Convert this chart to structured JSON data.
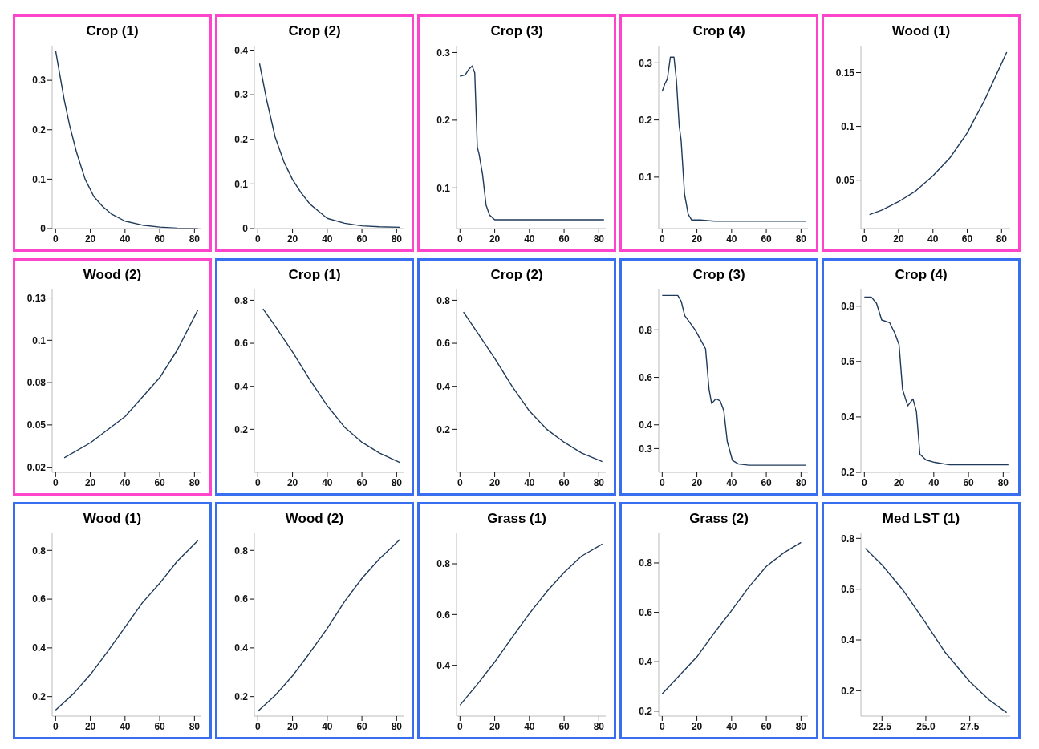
{
  "chart_data": [
    {
      "type": "line",
      "title": "Crop (1)",
      "xlim": [
        -2,
        84
      ],
      "xticks": [
        0,
        20,
        40,
        60,
        80
      ],
      "ylim": [
        0,
        0.37
      ],
      "yticks": [
        0,
        0.1,
        0.2,
        0.3
      ],
      "series": [
        {
          "color": "#1f3a5a",
          "x": [
            0,
            2,
            5,
            8,
            12,
            17,
            22,
            27,
            32,
            40,
            50,
            60,
            70,
            82
          ],
          "values": [
            0.36,
            0.32,
            0.26,
            0.21,
            0.155,
            0.1,
            0.065,
            0.045,
            0.03,
            0.015,
            0.007,
            0.003,
            0.001,
            0.0
          ]
        }
      ]
    },
    {
      "type": "line",
      "title": "Crop (2)",
      "xlim": [
        -2,
        84
      ],
      "xticks": [
        0,
        20,
        40,
        60,
        80
      ],
      "ylim": [
        0,
        0.41
      ],
      "yticks": [
        0,
        0.1,
        0.2,
        0.3,
        0.4
      ],
      "series": [
        {
          "color": "#1f3a5a",
          "x": [
            1,
            5,
            10,
            15,
            20,
            25,
            30,
            40,
            50,
            60,
            70,
            82
          ],
          "values": [
            0.37,
            0.29,
            0.205,
            0.15,
            0.11,
            0.08,
            0.055,
            0.023,
            0.012,
            0.006,
            0.004,
            0.003
          ]
        }
      ]
    },
    {
      "type": "line",
      "title": "Crop (3)",
      "xlim": [
        -2,
        84
      ],
      "xticks": [
        0,
        20,
        40,
        60,
        80
      ],
      "ylim": [
        0.04,
        0.31
      ],
      "yticks": [
        0.1,
        0.2,
        0.3
      ],
      "series": [
        {
          "color": "#1f3a5a",
          "x": [
            0,
            3,
            5,
            7,
            8.5,
            10,
            11,
            13,
            15,
            17,
            20,
            40,
            60,
            83
          ],
          "values": [
            0.265,
            0.267,
            0.275,
            0.28,
            0.27,
            0.16,
            0.15,
            0.12,
            0.075,
            0.06,
            0.053,
            0.053,
            0.053,
            0.053
          ]
        }
      ]
    },
    {
      "type": "line",
      "title": "Crop (4)",
      "xlim": [
        -2,
        84
      ],
      "xticks": [
        0,
        20,
        40,
        60,
        80
      ],
      "ylim": [
        0.01,
        0.33
      ],
      "yticks": [
        0.1,
        0.2,
        0.3
      ],
      "series": [
        {
          "color": "#1f3a5a",
          "x": [
            0,
            1.5,
            3,
            4.7,
            6.8,
            8.2,
            9.8,
            10.9,
            12.9,
            15,
            17,
            22,
            30,
            50,
            83
          ],
          "values": [
            0.25,
            0.263,
            0.272,
            0.31,
            0.31,
            0.27,
            0.19,
            0.165,
            0.07,
            0.035,
            0.025,
            0.025,
            0.023,
            0.023,
            0.023
          ]
        }
      ]
    },
    {
      "type": "line",
      "title": "Wood (1)",
      "xlim": [
        -2,
        85
      ],
      "xticks": [
        0,
        20,
        40,
        60,
        80
      ],
      "ylim": [
        0.005,
        0.175
      ],
      "yticks": [
        0.05,
        0.1,
        0.15
      ],
      "series": [
        {
          "color": "#1f3a5a",
          "x": [
            3,
            10,
            20,
            30,
            40,
            50,
            60,
            70,
            83
          ],
          "values": [
            0.018,
            0.022,
            0.03,
            0.04,
            0.054,
            0.071,
            0.094,
            0.124,
            0.169
          ]
        }
      ]
    },
    {
      "type": "line",
      "title": "Wood (2)",
      "xlim": [
        -2,
        84
      ],
      "xticks": [
        0,
        20,
        40,
        60,
        80
      ],
      "ylim": [
        0.022,
        0.13
      ],
      "yticks": [
        {
          "value": 0.025,
          "label": "0.02"
        },
        0.05,
        {
          "value": 0.075,
          "label": "0.08"
        },
        0.1,
        {
          "value": 0.125,
          "label": "0.13"
        }
      ],
      "series": [
        {
          "color": "#1f3a5a",
          "x": [
            5,
            20,
            40,
            60,
            70,
            82
          ],
          "values": [
            0.0306,
            0.0394,
            0.0549,
            0.078,
            0.094,
            0.118
          ]
        }
      ]
    },
    {
      "type": "line",
      "title": "Crop (1)",
      "xlim": [
        -2,
        84
      ],
      "xticks": [
        0,
        20,
        40,
        60,
        80
      ],
      "ylim": [
        0,
        0.85
      ],
      "yticks": [
        0.2,
        0.4,
        0.6,
        0.8
      ],
      "series": [
        {
          "color": "#1f3a5a",
          "x": [
            3,
            10,
            20,
            30,
            40,
            50,
            60,
            70,
            82
          ],
          "values": [
            0.76,
            0.68,
            0.56,
            0.43,
            0.31,
            0.21,
            0.14,
            0.09,
            0.045
          ]
        }
      ]
    },
    {
      "type": "line",
      "title": "Crop (2)",
      "xlim": [
        -2,
        84
      ],
      "xticks": [
        0,
        20,
        40,
        60,
        80
      ],
      "ylim": [
        0,
        0.85
      ],
      "yticks": [
        0.2,
        0.4,
        0.6,
        0.8
      ],
      "series": [
        {
          "color": "#1f3a5a",
          "x": [
            2,
            10,
            20,
            30,
            40,
            50,
            60,
            70,
            82
          ],
          "values": [
            0.745,
            0.65,
            0.53,
            0.4,
            0.285,
            0.2,
            0.14,
            0.09,
            0.05
          ]
        }
      ]
    },
    {
      "type": "line",
      "title": "Crop (3)",
      "xlim": [
        -2,
        84
      ],
      "xticks": [
        0,
        20,
        40,
        60,
        80
      ],
      "ylim": [
        0.2,
        0.97
      ],
      "yticks": [
        0.3,
        0.4,
        0.6,
        0.8
      ],
      "series": [
        {
          "color": "#1f3a5a",
          "x": [
            0,
            9,
            11,
            13,
            16,
            19,
            22,
            25,
            27,
            28.5,
            31,
            33.5,
            35.5,
            37.5,
            40.5,
            44,
            50,
            83
          ],
          "values": [
            0.945,
            0.945,
            0.92,
            0.86,
            0.83,
            0.8,
            0.76,
            0.72,
            0.55,
            0.49,
            0.51,
            0.5,
            0.46,
            0.33,
            0.25,
            0.235,
            0.23,
            0.23
          ]
        }
      ]
    },
    {
      "type": "line",
      "title": "Crop (4)",
      "xlim": [
        -2,
        84
      ],
      "xticks": [
        0,
        20,
        40,
        60,
        80
      ],
      "ylim": [
        0.2,
        0.86
      ],
      "yticks": [
        0.2,
        0.4,
        0.6,
        0.8
      ],
      "series": [
        {
          "color": "#1f3a5a",
          "x": [
            0,
            4,
            7,
            10,
            14.6,
            17.7,
            20,
            22,
            25,
            28,
            30,
            32,
            35.5,
            40.5,
            49,
            83
          ],
          "values": [
            0.833,
            0.833,
            0.81,
            0.75,
            0.74,
            0.7,
            0.66,
            0.5,
            0.44,
            0.465,
            0.42,
            0.265,
            0.245,
            0.236,
            0.227,
            0.227
          ]
        }
      ]
    },
    {
      "type": "line",
      "title": "Wood (1)",
      "xlim": [
        -2,
        84
      ],
      "xticks": [
        0,
        20,
        40,
        60,
        80
      ],
      "ylim": [
        0.12,
        0.87
      ],
      "yticks": [
        0.2,
        0.4,
        0.6,
        0.8
      ],
      "series": [
        {
          "color": "#1f3a5a",
          "x": [
            0,
            10,
            20,
            30,
            40,
            50,
            60,
            70,
            82
          ],
          "values": [
            0.145,
            0.21,
            0.29,
            0.385,
            0.485,
            0.585,
            0.665,
            0.755,
            0.84
          ]
        }
      ]
    },
    {
      "type": "line",
      "title": "Wood (2)",
      "xlim": [
        -2,
        84
      ],
      "xticks": [
        0,
        20,
        40,
        60,
        80
      ],
      "ylim": [
        0.12,
        0.87
      ],
      "yticks": [
        0.2,
        0.4,
        0.6,
        0.8
      ],
      "series": [
        {
          "color": "#1f3a5a",
          "x": [
            0,
            10,
            20,
            30,
            40,
            50,
            60,
            70,
            82
          ],
          "values": [
            0.14,
            0.205,
            0.285,
            0.38,
            0.48,
            0.59,
            0.685,
            0.765,
            0.845
          ]
        }
      ]
    },
    {
      "type": "line",
      "title": "Grass (1)",
      "xlim": [
        -2,
        84
      ],
      "xticks": [
        0,
        20,
        40,
        60,
        80
      ],
      "ylim": [
        0.2,
        0.92
      ],
      "yticks": [
        0.4,
        0.6,
        0.8
      ],
      "series": [
        {
          "color": "#1f3a5a",
          "x": [
            0,
            10,
            20,
            30,
            40,
            50,
            60,
            70,
            82
          ],
          "values": [
            0.243,
            0.325,
            0.413,
            0.51,
            0.604,
            0.69,
            0.766,
            0.83,
            0.878
          ]
        }
      ]
    },
    {
      "type": "line",
      "title": "Grass (2)",
      "xlim": [
        -2,
        84
      ],
      "xticks": [
        0,
        20,
        40,
        60,
        80
      ],
      "ylim": [
        0.18,
        0.92
      ],
      "yticks": [
        0.2,
        0.4,
        0.6,
        0.8
      ],
      "series": [
        {
          "color": "#1f3a5a",
          "x": [
            0,
            10,
            20,
            30,
            40,
            50,
            60,
            70,
            80
          ],
          "values": [
            0.27,
            0.345,
            0.42,
            0.517,
            0.607,
            0.703,
            0.786,
            0.841,
            0.883
          ]
        }
      ]
    },
    {
      "type": "line",
      "title": "Med LST (1)",
      "xlim": [
        21.3,
        29.8
      ],
      "xticks": [
        22.5,
        {
          "value": 25,
          "label": "25.0"
        },
        27.5
      ],
      "ylim": [
        0.1,
        0.82
      ],
      "yticks": [
        0.2,
        0.4,
        0.6,
        0.8
      ],
      "series": [
        {
          "color": "#1f3a5a",
          "x": [
            21.55,
            22.5,
            23.7,
            25,
            26.1,
            27.5,
            28.6,
            29.6
          ],
          "values": [
            0.761,
            0.696,
            0.596,
            0.466,
            0.351,
            0.236,
            0.164,
            0.114
          ]
        }
      ]
    }
  ]
}
